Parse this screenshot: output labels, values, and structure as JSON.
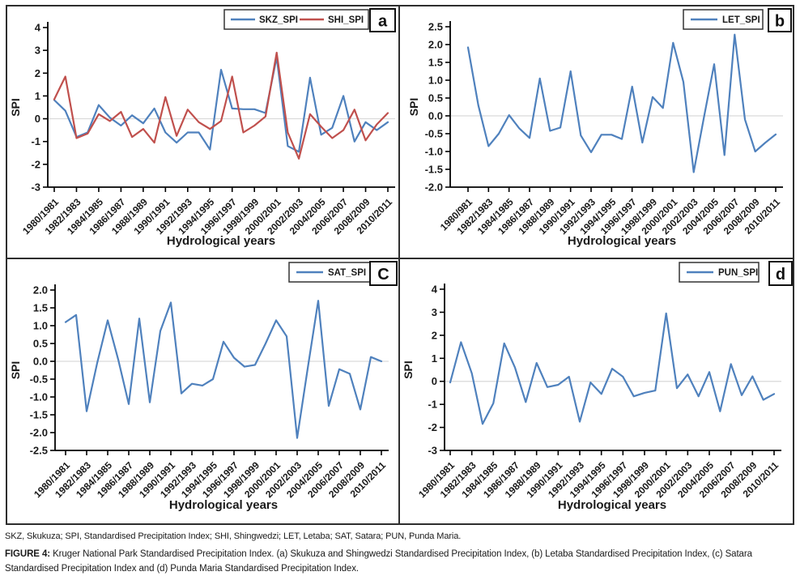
{
  "caption": {
    "abbreviations": "SKZ, Skukuza; SPI, Standardised Precipitation Index; SHI, Shingwedzi; LET, Letaba; SAT, Satara; PUN, Punda Maria.",
    "figure_label": "FIGURE 4:",
    "figure_text": "Kruger National Park Standardised Precipitation Index. (a) Skukuza and Shingwedzi Standardised Precipitation Index, (b) Letaba Standardised Precipitation Index, (c) Satara Standardised Precipitation Index and (d) Punda Maria Standardised Precipitation Index."
  },
  "colors": {
    "series_blue": "#4f81bd",
    "series_red": "#c0504d",
    "zero_line": "#d9d9d9",
    "axis": "#000000",
    "text": "#1a1a1a",
    "border": "#2e2e2e"
  },
  "chart_data": [
    {
      "type": "line",
      "panel_letter": "a",
      "ylabel": "SPI",
      "xlabel": "Hydrological years",
      "ylim": [
        -3,
        4
      ],
      "ytick_step": 1,
      "ytick_decimals": 0,
      "grid": "zero-line-only",
      "legend_position": "top-right",
      "n_points": 31,
      "x_tick_labels": [
        "1980/1981",
        "1982/1983",
        "1984/1985",
        "1986/1987",
        "1988/1989",
        "1990/1991",
        "1992/1993",
        "1994/1995",
        "1996/1997",
        "1998/1999",
        "2000/2001",
        "2002/2003",
        "2004/2005",
        "2006/2007",
        "2008/2009",
        "2010/2011"
      ],
      "series": [
        {
          "name": "SKZ_SPI",
          "color": "#4f81bd",
          "values": [
            0.82,
            0.35,
            -0.8,
            -0.6,
            0.6,
            0.05,
            -0.3,
            0.15,
            -0.2,
            0.45,
            -0.6,
            -1.05,
            -0.6,
            -0.6,
            -1.35,
            2.15,
            0.45,
            0.42,
            0.42,
            0.25,
            2.7,
            -1.2,
            -1.45,
            1.8,
            -0.7,
            -0.4,
            1.0,
            -1.0,
            -0.15,
            -0.5,
            -0.15
          ]
        },
        {
          "name": "SHI_SPI",
          "color": "#c0504d",
          "values": [
            0.85,
            1.85,
            -0.85,
            -0.65,
            0.2,
            -0.1,
            0.3,
            -0.8,
            -0.45,
            -1.05,
            0.95,
            -0.75,
            0.4,
            -0.15,
            -0.45,
            -0.1,
            1.85,
            -0.6,
            -0.3,
            0.1,
            2.9,
            -0.6,
            -1.75,
            0.2,
            -0.35,
            -0.85,
            -0.5,
            0.4,
            -0.95,
            -0.25,
            0.25
          ]
        }
      ]
    },
    {
      "type": "line",
      "panel_letter": "b",
      "ylabel": "SPI",
      "xlabel": "Hydrological years",
      "ylim": [
        -2.0,
        2.5
      ],
      "ytick_step": 0.5,
      "ytick_decimals": 1,
      "grid": "zero-line-only",
      "legend_position": "top-right",
      "n_points": 31,
      "x_tick_labels": [
        "1980/981",
        "1982/1983",
        "1984/1985",
        "1986/1987",
        "1988/1989",
        "1990/1991",
        "1992/1993",
        "1994/1995",
        "1996/1997",
        "1998/1999",
        "2000/2001",
        "2002/2003",
        "2004/2005",
        "2006/2007",
        "2008/2009",
        "2010/2011"
      ],
      "series": [
        {
          "name": "LET_SPI",
          "color": "#4f81bd",
          "values": [
            1.92,
            0.3,
            -0.85,
            -0.5,
            0.02,
            -0.35,
            -0.62,
            1.05,
            -0.42,
            -0.33,
            1.25,
            -0.55,
            -1.02,
            -0.53,
            -0.53,
            -0.65,
            0.82,
            -0.75,
            0.53,
            0.22,
            2.05,
            0.95,
            -1.58,
            -0.05,
            1.45,
            -1.1,
            2.28,
            -0.1,
            -1.0,
            -0.75,
            -0.52
          ]
        }
      ]
    },
    {
      "type": "line",
      "panel_letter": "C",
      "ylabel": "SPI",
      "xlabel": "Hydrological years",
      "ylim": [
        -2.5,
        2.0
      ],
      "ytick_step": 0.5,
      "ytick_decimals": 1,
      "grid": "zero-line-only",
      "legend_position": "top-right",
      "n_points": 31,
      "x_tick_labels": [
        "1980/1981",
        "1982/1983",
        "1984/1985",
        "1986/1987",
        "1988/1989",
        "1990/1991",
        "1992/1993",
        "1994/1995",
        "1996/1997",
        "1998/1999",
        "2000/2001",
        "2002/2003",
        "2004/2005",
        "2006/2007",
        "2008/2009",
        "2010/2011"
      ],
      "series": [
        {
          "name": "SAT_SPI",
          "color": "#4f81bd",
          "values": [
            1.1,
            1.3,
            -1.4,
            -0.05,
            1.15,
            0.05,
            -1.2,
            1.2,
            -1.15,
            0.85,
            1.65,
            -0.9,
            -0.63,
            -0.68,
            -0.5,
            0.55,
            0.1,
            -0.15,
            -0.1,
            0.5,
            1.15,
            0.7,
            -2.15,
            -0.2,
            1.7,
            -1.25,
            -0.22,
            -0.35,
            -1.35,
            0.12,
            0.0
          ]
        }
      ]
    },
    {
      "type": "line",
      "panel_letter": "d",
      "ylabel": "SPI",
      "xlabel": "Hydrological years",
      "ylim": [
        -3,
        4
      ],
      "ytick_step": 1,
      "ytick_decimals": 0,
      "grid": "zero-line-only",
      "legend_position": "top-right",
      "n_points": 31,
      "x_tick_labels": [
        "1980/1981",
        "1982/1983",
        "1984/1985",
        "1986/1987",
        "1988/1989",
        "1990/1991",
        "1992/1993",
        "1994/1995",
        "1996/1997",
        "1998/1999",
        "2000/2001",
        "2002/2003",
        "2004/2005",
        "2006/2007",
        "2008/2009",
        "2010/2011"
      ],
      "series": [
        {
          "name": "PUN_SPI",
          "color": "#4f81bd",
          "values": [
            -0.05,
            1.7,
            0.35,
            -1.85,
            -0.95,
            1.65,
            0.6,
            -0.9,
            0.8,
            -0.25,
            -0.15,
            0.2,
            -1.75,
            -0.05,
            -0.55,
            0.55,
            0.2,
            -0.65,
            -0.5,
            -0.4,
            2.95,
            -0.3,
            0.3,
            -0.65,
            0.4,
            -1.3,
            0.75,
            -0.6,
            0.22,
            -0.8,
            -0.55
          ]
        }
      ]
    }
  ]
}
